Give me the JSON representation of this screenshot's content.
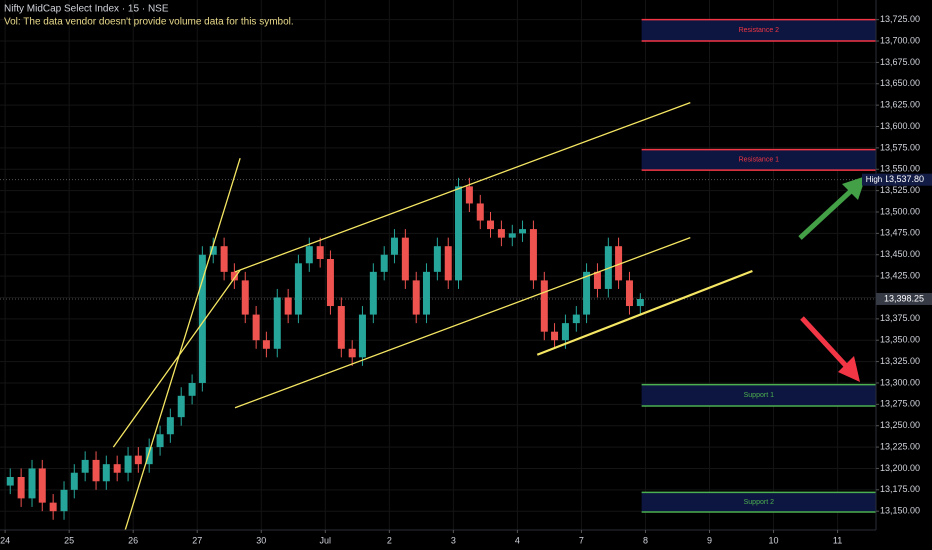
{
  "chart_data": {
    "type": "candlestick",
    "title": "Nifty MidCap Select Index · 15 · NSE",
    "subtitle": "Vol: The data vendor doesn't provide volume data for this symbol.",
    "up_color": "#26a69a",
    "down_color": "#ef5350",
    "x": [
      0.08,
      0.25,
      0.42,
      0.58,
      0.75,
      0.92,
      1.08,
      1.25,
      1.42,
      1.58,
      1.75,
      1.92,
      2.08,
      2.25,
      2.42,
      2.58,
      2.75,
      2.92,
      3.08,
      3.25,
      3.42,
      3.58,
      3.75,
      3.92,
      4.08,
      4.25,
      4.42,
      4.58,
      4.75,
      4.92,
      5.08,
      5.25,
      5.42,
      5.58,
      5.75,
      5.92,
      6.08,
      6.25,
      6.42,
      6.58,
      6.75,
      6.92,
      7.08,
      7.25,
      7.42,
      7.58,
      7.75,
      7.92,
      8.08,
      8.25,
      8.42,
      8.58,
      8.75,
      8.92,
      9.08,
      9.25,
      9.42,
      9.58,
      9.75,
      9.92
    ],
    "open": [
      13180,
      13190,
      13165,
      13200,
      13160,
      13150,
      13175,
      13195,
      13210,
      13185,
      13205,
      13195,
      13215,
      13205,
      13225,
      13240,
      13260,
      13285,
      13300,
      13450,
      13460,
      13430,
      13420,
      13380,
      13350,
      13340,
      13400,
      13380,
      13440,
      13460,
      13445,
      13390,
      13340,
      13330,
      13380,
      13430,
      13450,
      13470,
      13420,
      13380,
      13430,
      13460,
      13420,
      13530,
      13510,
      13490,
      13480,
      13470,
      13475,
      13480,
      13420,
      13360,
      13350,
      13370,
      13380,
      13430,
      13410,
      13460,
      13420,
      13390
    ],
    "high": [
      13200,
      13200,
      13210,
      13210,
      13170,
      13185,
      13205,
      13220,
      13220,
      13215,
      13215,
      13225,
      13225,
      13235,
      13250,
      13270,
      13295,
      13310,
      13460,
      13470,
      13470,
      13440,
      13430,
      13390,
      13360,
      13410,
      13410,
      13450,
      13470,
      13470,
      13455,
      13400,
      13350,
      13390,
      13440,
      13460,
      13480,
      13480,
      13430,
      13440,
      13470,
      13470,
      13540,
      13540,
      13520,
      13500,
      13490,
      13485,
      13490,
      13490,
      13430,
      13370,
      13380,
      13390,
      13440,
      13440,
      13470,
      13470,
      13430,
      13405
    ],
    "low": [
      13170,
      13155,
      13155,
      13150,
      13140,
      13140,
      13165,
      13185,
      13175,
      13175,
      13185,
      13185,
      13195,
      13195,
      13215,
      13230,
      13250,
      13275,
      13290,
      13440,
      13420,
      13410,
      13370,
      13340,
      13330,
      13330,
      13370,
      13370,
      13430,
      13435,
      13380,
      13330,
      13320,
      13320,
      13370,
      13420,
      13440,
      13410,
      13370,
      13370,
      13420,
      13410,
      13410,
      13500,
      13480,
      13470,
      13460,
      13460,
      13465,
      13410,
      13350,
      13340,
      13340,
      13360,
      13370,
      13400,
      13400,
      13410,
      13380,
      13380
    ],
    "close": [
      13190,
      13165,
      13200,
      13160,
      13150,
      13175,
      13195,
      13210,
      13185,
      13205,
      13195,
      13215,
      13205,
      13225,
      13240,
      13260,
      13285,
      13300,
      13450,
      13460,
      13430,
      13420,
      13380,
      13350,
      13340,
      13400,
      13380,
      13440,
      13460,
      13445,
      13390,
      13340,
      13330,
      13380,
      13430,
      13450,
      13470,
      13420,
      13380,
      13430,
      13460,
      13420,
      13530,
      13510,
      13490,
      13480,
      13470,
      13475,
      13480,
      13420,
      13360,
      13350,
      13370,
      13380,
      13430,
      13410,
      13460,
      13420,
      13390,
      13398.25
    ],
    "xlim": [
      -0.08,
      13.6
    ],
    "xticks": [
      {
        "value": 0,
        "label": "24"
      },
      {
        "value": 1,
        "label": "25"
      },
      {
        "value": 2,
        "label": "26"
      },
      {
        "value": 3,
        "label": "27"
      },
      {
        "value": 4,
        "label": "30"
      },
      {
        "value": 5,
        "label": "Jul"
      },
      {
        "value": 6,
        "label": "2"
      },
      {
        "value": 7,
        "label": "3"
      },
      {
        "value": 8,
        "label": "4"
      },
      {
        "value": 9,
        "label": "7"
      },
      {
        "value": 10,
        "label": "8"
      },
      {
        "value": 11,
        "label": "9"
      },
      {
        "value": 12,
        "label": "10"
      },
      {
        "value": 13,
        "label": "11"
      }
    ],
    "ylim": [
      13128,
      13748
    ],
    "yticks": [
      {
        "value": 13150,
        "label": "13,150.00"
      },
      {
        "value": 13175,
        "label": "13,175.00"
      },
      {
        "value": 13200,
        "label": "13,200.00"
      },
      {
        "value": 13225,
        "label": "13,225.00"
      },
      {
        "value": 13250,
        "label": "13,250.00"
      },
      {
        "value": 13275,
        "label": "13,275.00"
      },
      {
        "value": 13300,
        "label": "13,300.00"
      },
      {
        "value": 13325,
        "label": "13,325.00"
      },
      {
        "value": 13350,
        "label": "13,350.00"
      },
      {
        "value": 13375,
        "label": "13,375.00"
      },
      {
        "value": 13400,
        "label": "13,400.00"
      },
      {
        "value": 13425,
        "label": "13,425.00"
      },
      {
        "value": 13450,
        "label": "13,450.00"
      },
      {
        "value": 13475,
        "label": "13,475.00"
      },
      {
        "value": 13500,
        "label": "13,500.00"
      },
      {
        "value": 13525,
        "label": "13,525.00"
      },
      {
        "value": 13550,
        "label": "13,550.00"
      },
      {
        "value": 13575,
        "label": "13,575.00"
      },
      {
        "value": 13600,
        "label": "13,600.00"
      },
      {
        "value": 13625,
        "label": "13,625.00"
      },
      {
        "value": 13650,
        "label": "13,650.00"
      },
      {
        "value": 13675,
        "label": "13,675.00"
      },
      {
        "value": 13700,
        "label": "13,700.00"
      },
      {
        "value": 13725,
        "label": "13,725.00"
      }
    ],
    "grid": true,
    "drawings": [
      {
        "x": [
          1.875,
          3.67
        ],
        "y": [
          13128,
          13563
        ],
        "color": "#f5e663"
      },
      {
        "x": [
          1.69,
          3.67
        ],
        "y": [
          13225,
          13432
        ],
        "color": "#f5e663"
      },
      {
        "x": [
          3.59,
          10.7
        ],
        "y": [
          13430,
          13628
        ],
        "color": "#f5e663"
      },
      {
        "x": [
          3.59,
          10.7
        ],
        "y": [
          13271,
          13470
        ],
        "color": "#f5e663"
      },
      {
        "x": [
          8.31,
          11.67
        ],
        "y": [
          13333,
          13431
        ],
        "color": "#f5e663"
      }
    ],
    "zones": [
      {
        "label": "Resistance 2",
        "from": 13700,
        "to": 13725,
        "x0": 9.94,
        "color": "#f23645",
        "fill": "#0d1640"
      },
      {
        "label": "Resistance 1",
        "from": 13549,
        "to": 13573,
        "x0": 9.94,
        "color": "#f23645",
        "fill": "#0d1640"
      },
      {
        "label": "Support 1",
        "from": 13273,
        "to": 13298,
        "x0": 9.94,
        "color": "#4caf50",
        "fill": "#0d1640"
      },
      {
        "label": "Support 2",
        "from": 13149,
        "to": 13172,
        "x0": 9.94,
        "color": "#4caf50",
        "fill": "#0d1640"
      }
    ],
    "markers": [
      {
        "label": "High",
        "value": 13537.8,
        "value_label": "13,537.80"
      },
      {
        "value": 13398.25,
        "value_label": "13,398.25"
      }
    ]
  }
}
